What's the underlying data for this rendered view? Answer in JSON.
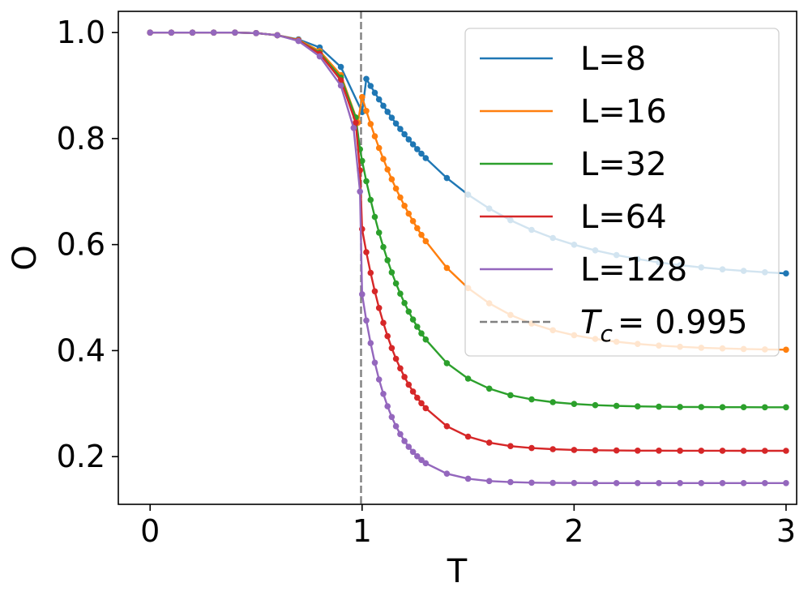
{
  "chart_data": {
    "type": "line",
    "xlabel": "T",
    "ylabel": "O",
    "xlim": [
      -0.15,
      3.05
    ],
    "ylim": [
      0.11,
      1.04
    ],
    "xticks": [
      "0",
      "1",
      "2",
      "3"
    ],
    "yticks": [
      "0.2",
      "0.4",
      "0.6",
      "0.8",
      "1.0"
    ],
    "grid": false,
    "legend_position": "top-right",
    "critical_line": {
      "x": 0.995,
      "label_prefix": "T",
      "label_sub": "c",
      "label_value": "= 0.995",
      "color": "#808080"
    },
    "series": [
      {
        "name": "L=8",
        "color": "#1f77b4",
        "low_T": [
          [
            0.0,
            1.0
          ],
          [
            0.1,
            1.0
          ],
          [
            0.2,
            1.0
          ],
          [
            0.3,
            1.0
          ],
          [
            0.4,
            1.0
          ],
          [
            0.5,
            0.999
          ],
          [
            0.6,
            0.995
          ],
          [
            0.7,
            0.987
          ],
          [
            0.8,
            0.972
          ],
          [
            0.9,
            0.935
          ],
          [
            1.0,
            0.85
          ]
        ],
        "asymptote": 0.535,
        "amp": 0.395,
        "decay": 1.8
      },
      {
        "name": "L=16",
        "color": "#ff7f0e",
        "low_T": [
          [
            0.0,
            1.0
          ],
          [
            0.1,
            1.0
          ],
          [
            0.2,
            1.0
          ],
          [
            0.3,
            1.0
          ],
          [
            0.4,
            1.0
          ],
          [
            0.5,
            0.999
          ],
          [
            0.6,
            0.995
          ],
          [
            0.7,
            0.986
          ],
          [
            0.8,
            0.965
          ],
          [
            0.9,
            0.92
          ],
          [
            0.98,
            0.83
          ]
        ],
        "asymptote": 0.4,
        "amp": 0.485,
        "decay": 2.8
      },
      {
        "name": "L=32",
        "color": "#2ca02c",
        "low_T": [
          [
            0.0,
            1.0
          ],
          [
            0.1,
            1.0
          ],
          [
            0.2,
            1.0
          ],
          [
            0.3,
            1.0
          ],
          [
            0.4,
            1.0
          ],
          [
            0.5,
            0.999
          ],
          [
            0.6,
            0.995
          ],
          [
            0.7,
            0.985
          ],
          [
            0.8,
            0.962
          ],
          [
            0.9,
            0.915
          ],
          [
            0.97,
            0.84
          ],
          [
            0.99,
            0.78
          ]
        ],
        "asymptote": 0.293,
        "amp": 0.475,
        "decay": 4.3
      },
      {
        "name": "L=64",
        "color": "#d62728",
        "low_T": [
          [
            0.0,
            1.0
          ],
          [
            0.1,
            1.0
          ],
          [
            0.2,
            1.0
          ],
          [
            0.3,
            1.0
          ],
          [
            0.4,
            1.0
          ],
          [
            0.5,
            0.999
          ],
          [
            0.6,
            0.995
          ],
          [
            0.7,
            0.985
          ],
          [
            0.8,
            0.96
          ],
          [
            0.9,
            0.91
          ],
          [
            0.97,
            0.83
          ],
          [
            0.99,
            0.74
          ]
        ],
        "asymptote": 0.211,
        "amp": 0.43,
        "decay": 5.5
      },
      {
        "name": "L=128",
        "color": "#9467bd",
        "low_T": [
          [
            0.0,
            1.0
          ],
          [
            0.1,
            1.0
          ],
          [
            0.2,
            1.0
          ],
          [
            0.3,
            1.0
          ],
          [
            0.4,
            1.0
          ],
          [
            0.5,
            0.999
          ],
          [
            0.6,
            0.995
          ],
          [
            0.7,
            0.984
          ],
          [
            0.8,
            0.955
          ],
          [
            0.9,
            0.9
          ],
          [
            0.96,
            0.82
          ],
          [
            0.99,
            0.7
          ]
        ],
        "asymptote": 0.15,
        "amp": 0.37,
        "decay": 7.5
      }
    ]
  }
}
